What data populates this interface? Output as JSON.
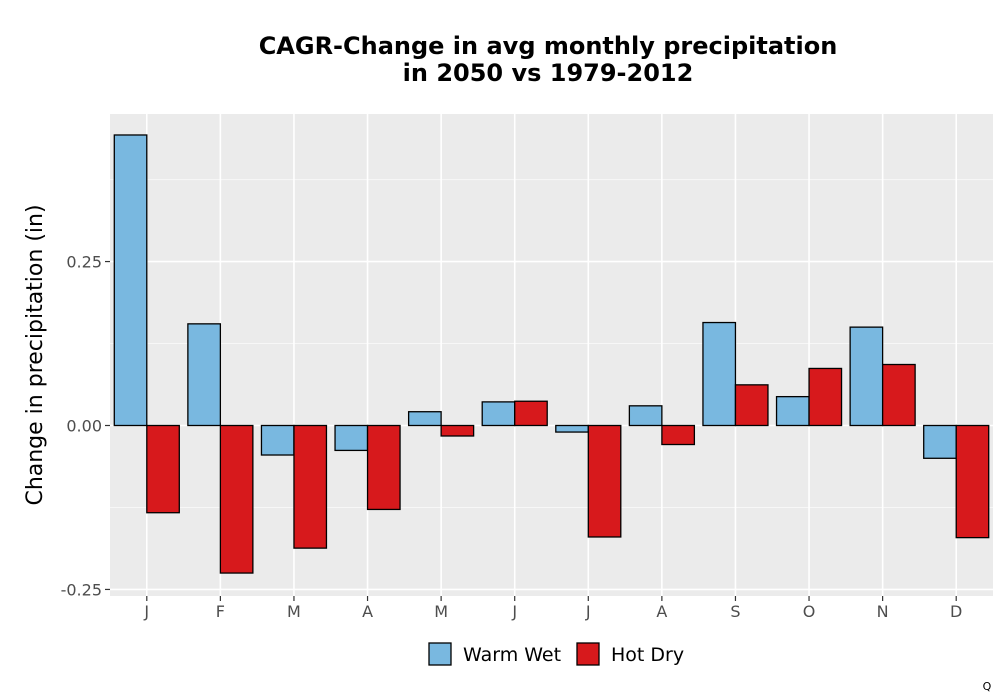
{
  "chart_data": {
    "type": "bar",
    "title_lines": [
      "CAGR-Change in avg monthly precipitation",
      "in 2050 vs 1979-2012"
    ],
    "ylabel": "Change in precipitation (in)",
    "xlabel": "",
    "categories": [
      "J",
      "F",
      "M",
      "A",
      "M",
      "J",
      "J",
      "A",
      "S",
      "O",
      "N",
      "D"
    ],
    "y_ticks": [
      -0.25,
      0.0,
      0.25
    ],
    "y_tick_labels": [
      "-0.25",
      "0.00",
      "0.25"
    ],
    "ylim": [
      -0.26,
      0.475
    ],
    "grid": true,
    "legend_position": "bottom",
    "series": [
      {
        "name": "Warm Wet",
        "color": "#79b8e0",
        "values": [
          0.443,
          0.155,
          -0.045,
          -0.038,
          0.021,
          0.036,
          -0.01,
          0.03,
          0.157,
          0.044,
          0.15,
          -0.05
        ]
      },
      {
        "name": "Hot Dry",
        "color": "#d7191c",
        "values": [
          -0.133,
          -0.225,
          -0.187,
          -0.128,
          -0.016,
          0.037,
          -0.17,
          -0.029,
          0.062,
          0.087,
          0.093,
          -0.171
        ]
      }
    ]
  },
  "corner_mark": "Q"
}
